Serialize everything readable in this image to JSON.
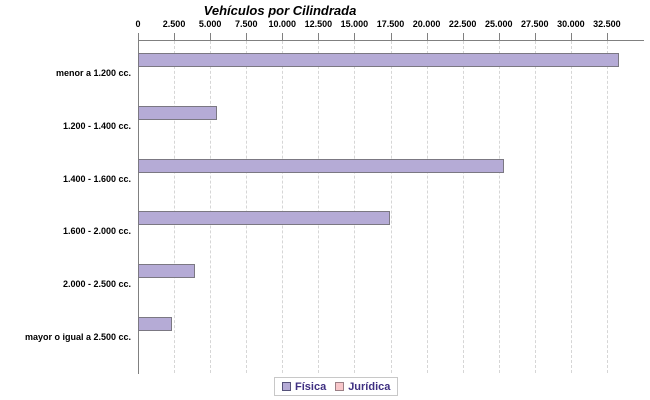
{
  "title": "Vehículos por Cilindrada",
  "chart_data": {
    "type": "bar",
    "orientation": "horizontal",
    "title": "Vehículos por Cilindrada",
    "categories": [
      "menor a 1.200 cc.",
      "1.200 - 1.400 cc.",
      "1.400 - 1.600 cc.",
      "1.600 - 2.000 cc.",
      "2.000 - 2.500 cc.",
      "mayor o igual a 2.500 cc."
    ],
    "series": [
      {
        "name": "Física",
        "color": "#b5abd6",
        "border": "#7b7882",
        "values": [
          33300,
          5400,
          25300,
          17400,
          3900,
          2300
        ]
      },
      {
        "name": "Jurídica",
        "color": "#f8c7ca",
        "border": "#a08084",
        "values": [
          0,
          0,
          0,
          0,
          0,
          0
        ]
      }
    ],
    "xlim": [
      0,
      35000
    ],
    "x_tick_interval": 2500,
    "x_tick_labels": [
      "0",
      "2.500",
      "5.000",
      "7.500",
      "10.000",
      "12.500",
      "15.000",
      "17.500",
      "20.000",
      "22.500",
      "25.000",
      "27.500",
      "30.000",
      "32.500"
    ],
    "grid": true,
    "gridline_style": "dashed",
    "axis_position": "top",
    "legend_position": "bottom"
  },
  "legend": {
    "items": [
      {
        "label": "Física",
        "color": "#b5abd6",
        "border": "#55517a"
      },
      {
        "label": "Jurídica",
        "color": "#f8c7ca",
        "border": "#9b7f85"
      }
    ],
    "text_color": "#3f3082"
  },
  "colors": {
    "background": "#ffffff",
    "axis": "#808080",
    "gridline": "#d6d6d6",
    "title": "#000000",
    "labels": "#000000"
  }
}
